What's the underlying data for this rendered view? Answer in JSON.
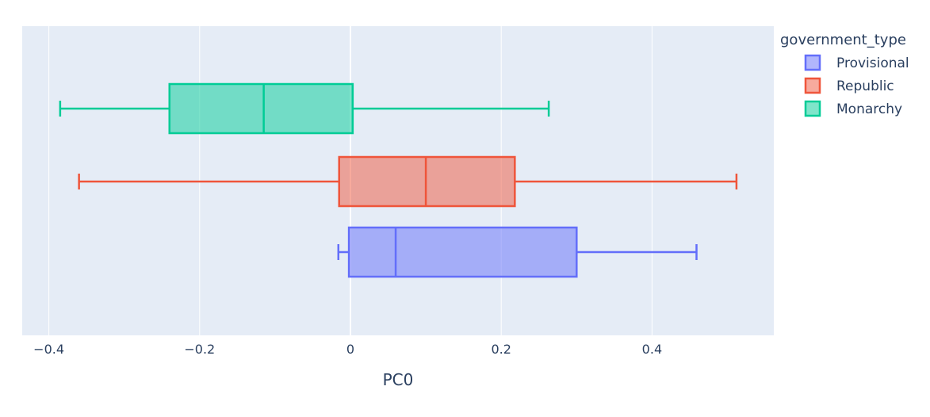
{
  "chart_data": {
    "type": "box",
    "orientation": "horizontal",
    "xlabel": "PC0",
    "xlim": [
      -0.425,
      0.55
    ],
    "x_ticks": [
      -0.4,
      -0.2,
      0,
      0.2,
      0.4
    ],
    "x_tick_labels": [
      "−0.4",
      "−0.2",
      "0",
      "0.2",
      "0.4"
    ],
    "grid": true,
    "legend": {
      "title": "government_type",
      "placement": "top-right"
    },
    "series": [
      {
        "name": "Provisional",
        "color": "#636efa",
        "min": -0.016,
        "q1": -0.002,
        "median": 0.06,
        "q3": 0.3,
        "max": 0.459
      },
      {
        "name": "Republic",
        "color": "#ef553b",
        "min": -0.36,
        "q1": -0.015,
        "median": 0.1,
        "q3": 0.218,
        "max": 0.512
      },
      {
        "name": "Monarchy",
        "color": "#00cc96",
        "min": -0.385,
        "q1": -0.24,
        "median": -0.115,
        "q3": 0.003,
        "max": 0.263
      }
    ]
  }
}
